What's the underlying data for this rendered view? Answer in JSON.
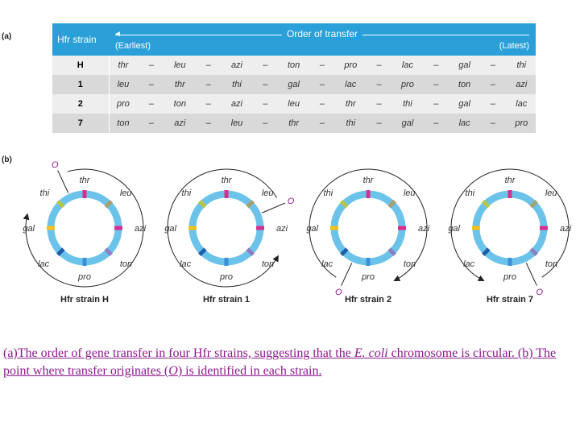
{
  "panel_a_label": "(a)",
  "panel_b_label": "(b)",
  "table": {
    "strain_header": "Hfr strain",
    "order_header": "Order of transfer",
    "earliest": "(Earliest)",
    "latest": "(Latest)",
    "rows": [
      {
        "strain": "H",
        "genes": [
          "thr",
          "leu",
          "azi",
          "ton",
          "pro",
          "lac",
          "gal",
          "thi"
        ]
      },
      {
        "strain": "1",
        "genes": [
          "leu",
          "thr",
          "thi",
          "gal",
          "lac",
          "pro",
          "ton",
          "azi"
        ]
      },
      {
        "strain": "2",
        "genes": [
          "pro",
          "ton",
          "azi",
          "leu",
          "thr",
          "thi",
          "gal",
          "lac"
        ]
      },
      {
        "strain": "7",
        "genes": [
          "ton",
          "azi",
          "leu",
          "thr",
          "thi",
          "gal",
          "lac",
          "pro"
        ]
      }
    ]
  },
  "diagrams": [
    {
      "label": "Hfr strain H",
      "origin_label": "O",
      "genes": [
        "thr",
        "leu",
        "azi",
        "ton",
        "pro",
        "lac",
        "gal",
        "thi"
      ]
    },
    {
      "label": "Hfr strain 1",
      "origin_label": "O",
      "genes": [
        "thr",
        "leu",
        "azi",
        "ton",
        "pro",
        "lac",
        "gal",
        "thi"
      ]
    },
    {
      "label": "Hfr strain 2",
      "origin_label": "O",
      "genes": [
        "thr",
        "leu",
        "azi",
        "ton",
        "pro",
        "lac",
        "gal",
        "thi"
      ]
    },
    {
      "label": "Hfr strain 7",
      "origin_label": "O",
      "genes": [
        "thr",
        "leu",
        "azi",
        "ton",
        "pro",
        "lac",
        "gal",
        "thi"
      ]
    }
  ],
  "colors": {
    "header_blue": "#2a9fd8",
    "ring_blue": "#6cc3ea",
    "thr": "#d6308f",
    "leu": "#a5a072",
    "azi": "#d6308f",
    "ton": "#8d7fc2",
    "pro": "#3a8fd8",
    "lac": "#1e5ea8",
    "gal": "#f2c21a",
    "thi": "#b8c44a"
  },
  "caption": {
    "part1": "(a)The order of gene transfer in four Hfr strains, suggesting that the ",
    "species": "E. coli",
    "part2": " chromosome is circular. (b) The point where transfer originates (",
    "origin": "O",
    "part3": ") is identified in each strain."
  }
}
